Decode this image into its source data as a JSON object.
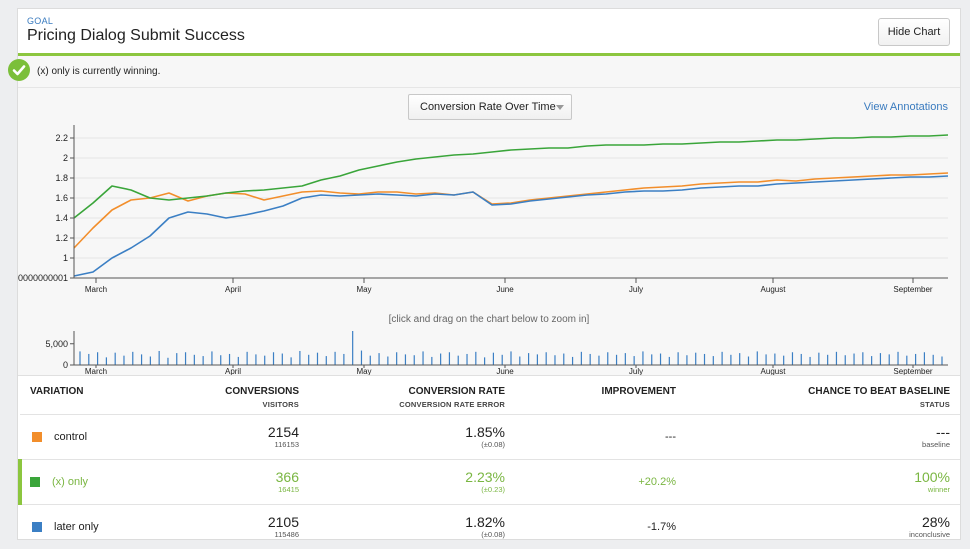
{
  "header": {
    "goal_label": "GOAL",
    "title": "Pricing Dialog Submit Success",
    "hide_chart_label": "Hide Chart"
  },
  "status": {
    "message": "(x) only is currently winning.",
    "icon": "checkmark-icon"
  },
  "chart_controls": {
    "metric_select": "Conversion Rate Over Time",
    "view_annotations": "View Annotations",
    "zoom_hint": "[click and drag on the chart below to zoom in]"
  },
  "colors": {
    "control": "#f28e2b",
    "x_only": "#3aa53a",
    "later_only": "#3b7fc4",
    "accent_green": "#8cc63f",
    "link_blue": "#3a7bbf"
  },
  "chart_data": [
    {
      "type": "line",
      "title": "",
      "xlabel": "",
      "ylabel": "",
      "x_ticks": [
        "March",
        "April",
        "May",
        "June",
        "July",
        "August",
        "September"
      ],
      "y_ticks": [
        "0000000001",
        "1",
        "1.2",
        "1.4",
        "1.6",
        "1.8",
        "2",
        "2.2"
      ],
      "ylim": [
        0.8,
        2.25
      ],
      "grid": true,
      "series": [
        {
          "name": "control",
          "values": [
            1.1,
            1.3,
            1.48,
            1.58,
            1.6,
            1.65,
            1.57,
            1.62,
            1.65,
            1.64,
            1.58,
            1.62,
            1.66,
            1.67,
            1.65,
            1.64,
            1.66,
            1.66,
            1.64,
            1.65,
            1.63,
            1.66,
            1.54,
            1.55,
            1.58,
            1.6,
            1.62,
            1.64,
            1.66,
            1.68,
            1.7,
            1.71,
            1.72,
            1.74,
            1.75,
            1.76,
            1.76,
            1.78,
            1.77,
            1.79,
            1.8,
            1.81,
            1.82,
            1.83,
            1.83,
            1.84,
            1.85
          ]
        },
        {
          "name": "(x) only",
          "values": [
            1.4,
            1.55,
            1.72,
            1.68,
            1.6,
            1.58,
            1.6,
            1.62,
            1.65,
            1.67,
            1.68,
            1.7,
            1.72,
            1.78,
            1.82,
            1.88,
            1.92,
            1.96,
            1.99,
            2.01,
            2.03,
            2.04,
            2.06,
            2.08,
            2.09,
            2.1,
            2.1,
            2.12,
            2.13,
            2.13,
            2.13,
            2.14,
            2.14,
            2.15,
            2.16,
            2.16,
            2.17,
            2.18,
            2.18,
            2.19,
            2.2,
            2.2,
            2.21,
            2.21,
            2.22,
            2.22,
            2.23
          ]
        },
        {
          "name": "later only",
          "values": [
            0.82,
            0.86,
            1.0,
            1.1,
            1.22,
            1.4,
            1.46,
            1.44,
            1.4,
            1.43,
            1.47,
            1.52,
            1.6,
            1.63,
            1.62,
            1.63,
            1.64,
            1.63,
            1.62,
            1.64,
            1.63,
            1.66,
            1.53,
            1.54,
            1.57,
            1.59,
            1.61,
            1.63,
            1.64,
            1.66,
            1.67,
            1.67,
            1.68,
            1.7,
            1.71,
            1.72,
            1.72,
            1.74,
            1.75,
            1.76,
            1.77,
            1.78,
            1.79,
            1.8,
            1.81,
            1.81,
            1.82
          ]
        }
      ]
    },
    {
      "type": "bar",
      "title": "",
      "x_ticks": [
        "March",
        "April",
        "May",
        "June",
        "July",
        "August",
        "September"
      ],
      "y_ticks": [
        "0",
        "5,000"
      ],
      "ylim": [
        0,
        8000
      ],
      "values": [
        3200,
        2600,
        3000,
        1800,
        2900,
        2200,
        3100,
        2500,
        2000,
        3300,
        1700,
        2800,
        3000,
        2400,
        2100,
        3200,
        2300,
        2600,
        1900,
        3100,
        2500,
        2200,
        3000,
        2700,
        1800,
        3300,
        2400,
        2900,
        2100,
        3100,
        2600,
        8000,
        3400,
        2200,
        2800,
        2000,
        3000,
        2500,
        2300,
        3200,
        1900,
        2700,
        3000,
        2200,
        2600,
        3100,
        1800,
        2900,
        2400,
        3200,
        2000,
        2800,
        2500,
        3000,
        2300,
        2700,
        1900,
        3100,
        2600,
        2200,
        3000,
        2400,
        2800,
        2100,
        3200,
        2500,
        2700,
        1900,
        3000,
        2300,
        2900,
        2600,
        2100,
        3100,
        2400,
        2800,
        2000,
        3200,
        2500,
        2700,
        2200,
        3000,
        2600,
        1900,
        2900,
        2400,
        3100,
        2300,
        2700,
        3000,
        2100,
        2800,
        2500,
        3100,
        2200,
        2600,
        3000,
        2400,
        2000
      ]
    }
  ],
  "table": {
    "headers": {
      "variation": "VARIATION",
      "conversions": "CONVERSIONS",
      "visitors": "VISITORS",
      "rate": "CONVERSION RATE",
      "rate_error": "CONVERSION RATE ERROR",
      "improvement": "IMPROVEMENT",
      "chance": "CHANCE TO BEAT BASELINE",
      "status": "STATUS"
    },
    "rows": [
      {
        "name": "control",
        "conversions": "2154",
        "visitors": "116153",
        "rate": "1.85%",
        "error": "(±0.08)",
        "improvement": "---",
        "chance": "---",
        "status": "baseline"
      },
      {
        "name": "(x) only",
        "conversions": "366",
        "visitors": "16415",
        "rate": "2.23%",
        "error": "(±0.23)",
        "improvement": "+20.2%",
        "chance": "100%",
        "status": "winner"
      },
      {
        "name": "later only",
        "conversions": "2105",
        "visitors": "115486",
        "rate": "1.82%",
        "error": "(±0.08)",
        "improvement": "-1.7%",
        "chance": "28%",
        "status": "inconclusive"
      }
    ]
  }
}
